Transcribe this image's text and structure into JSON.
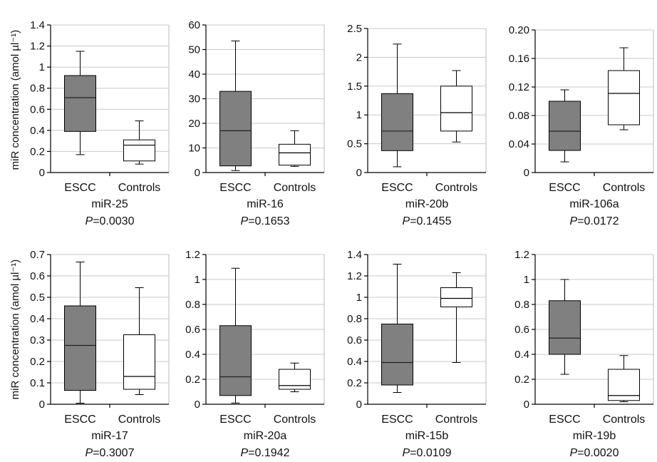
{
  "ylabel": "miR concentration (amol µl⁻¹)",
  "colors": {
    "escc_box": "#808080",
    "control_box": "#ffffff",
    "grid": "#c8c8c8"
  },
  "chart_data": [
    {
      "type": "box",
      "name": "miR-25",
      "p_prefix": "P",
      "p_value": "=0.0030",
      "ylim": [
        0,
        1.4
      ],
      "yticks": [
        0,
        0.2,
        0.4,
        0.6,
        0.8,
        1,
        1.2,
        1.4
      ],
      "ytick_labels": [
        "0",
        "0.2",
        "0.4",
        "0.6",
        "0.8",
        "1",
        "1.2",
        "1.4"
      ],
      "categories": [
        "ESCC",
        "Controls"
      ],
      "boxes": [
        {
          "min": 0.17,
          "q1": 0.39,
          "median": 0.71,
          "q3": 0.92,
          "max": 1.15
        },
        {
          "min": 0.08,
          "q1": 0.11,
          "median": 0.26,
          "q3": 0.31,
          "max": 0.49
        }
      ]
    },
    {
      "type": "box",
      "name": "miR-16",
      "p_prefix": "P",
      "p_value": "=0.1653",
      "ylim": [
        0,
        60
      ],
      "yticks": [
        0,
        10,
        20,
        30,
        40,
        50,
        60
      ],
      "ytick_labels": [
        "0",
        "10",
        "20",
        "30",
        "40",
        "50",
        "60"
      ],
      "categories": [
        "ESCC",
        "Controls"
      ],
      "boxes": [
        {
          "min": 0.8,
          "q1": 2.7,
          "median": 17,
          "q3": 33,
          "max": 53.5
        },
        {
          "min": 2.5,
          "q1": 3,
          "median": 8,
          "q3": 11.5,
          "max": 17
        }
      ]
    },
    {
      "type": "box",
      "name": "miR-20b",
      "p_prefix": "P",
      "p_value": "=0.1455",
      "ylim": [
        0,
        2.5
      ],
      "yticks": [
        0,
        0.5,
        1,
        1.5,
        2,
        2.5
      ],
      "ytick_labels": [
        "0",
        "0.5",
        "1",
        "1.5",
        "2",
        "2.5"
      ],
      "categories": [
        "ESCC",
        "Controls"
      ],
      "boxes": [
        {
          "min": 0.1,
          "q1": 0.38,
          "median": 0.72,
          "q3": 1.37,
          "max": 2.23
        },
        {
          "min": 0.53,
          "q1": 0.72,
          "median": 1.04,
          "q3": 1.5,
          "max": 1.77
        }
      ]
    },
    {
      "type": "box",
      "name": "miR-106a",
      "p_prefix": "P",
      "p_value": "=0.0172",
      "ylim": [
        0,
        0.2
      ],
      "yticks": [
        0,
        0.04,
        0.08,
        0.12,
        0.16,
        0.2
      ],
      "ytick_labels": [
        "0",
        "0.04",
        "0.08",
        "0.12",
        "0.16",
        "0.20"
      ],
      "categories": [
        "ESCC",
        "Controls"
      ],
      "boxes": [
        {
          "min": 0.015,
          "q1": 0.031,
          "median": 0.058,
          "q3": 0.1,
          "max": 0.116
        },
        {
          "min": 0.06,
          "q1": 0.067,
          "median": 0.111,
          "q3": 0.143,
          "max": 0.175
        }
      ]
    },
    {
      "type": "box",
      "name": "miR-17",
      "p_prefix": "P",
      "p_value": "=0.3007",
      "ylim": [
        0,
        0.7
      ],
      "yticks": [
        0,
        0.1,
        0.2,
        0.3,
        0.4,
        0.5,
        0.6,
        0.7
      ],
      "ytick_labels": [
        "0",
        "0.1",
        "0.2",
        "0.3",
        "0.4",
        "0.5",
        "0.6",
        "0.7"
      ],
      "categories": [
        "ESCC",
        "Controls"
      ],
      "boxes": [
        {
          "min": 0.005,
          "q1": 0.065,
          "median": 0.275,
          "q3": 0.46,
          "max": 0.665
        },
        {
          "min": 0.045,
          "q1": 0.07,
          "median": 0.13,
          "q3": 0.325,
          "max": 0.545
        }
      ]
    },
    {
      "type": "box",
      "name": "miR-20a",
      "p_prefix": "P",
      "p_value": "=0.1942",
      "ylim": [
        0,
        1.2
      ],
      "yticks": [
        0,
        0.2,
        0.4,
        0.6,
        0.8,
        1,
        1.2
      ],
      "ytick_labels": [
        "0",
        "0.2",
        "0.4",
        "0.6",
        "0.8",
        "1",
        "1.2"
      ],
      "categories": [
        "ESCC",
        "Controls"
      ],
      "boxes": [
        {
          "min": 0.01,
          "q1": 0.07,
          "median": 0.22,
          "q3": 0.63,
          "max": 1.09
        },
        {
          "min": 0.1,
          "q1": 0.12,
          "median": 0.15,
          "q3": 0.28,
          "max": 0.33
        }
      ]
    },
    {
      "type": "box",
      "name": "miR-15b",
      "p_prefix": "P",
      "p_value": "=0.0109",
      "ylim": [
        0,
        1.4
      ],
      "yticks": [
        0,
        0.2,
        0.4,
        0.6,
        0.8,
        1,
        1.2,
        1.4
      ],
      "ytick_labels": [
        "0",
        "0.2",
        "0.4",
        "0.6",
        "0.8",
        "1",
        "1.2",
        "1.4"
      ],
      "categories": [
        "ESCC",
        "Controls"
      ],
      "boxes": [
        {
          "min": 0.11,
          "q1": 0.18,
          "median": 0.39,
          "q3": 0.75,
          "max": 1.31
        },
        {
          "min": 0.39,
          "q1": 0.91,
          "median": 0.99,
          "q3": 1.09,
          "max": 1.23
        }
      ]
    },
    {
      "type": "box",
      "name": "miR-19b",
      "p_prefix": "P",
      "p_value": "=0.0020",
      "ylim": [
        0,
        1.2
      ],
      "yticks": [
        0,
        0.2,
        0.4,
        0.6,
        0.8,
        1,
        1.2
      ],
      "ytick_labels": [
        "0",
        "0.2",
        "0.4",
        "0.6",
        "0.8",
        "1",
        "1.2"
      ],
      "categories": [
        "ESCC",
        "Controls"
      ],
      "boxes": [
        {
          "min": 0.24,
          "q1": 0.4,
          "median": 0.53,
          "q3": 0.83,
          "max": 1.0
        },
        {
          "min": 0.02,
          "q1": 0.03,
          "median": 0.07,
          "q3": 0.28,
          "max": 0.39
        }
      ]
    }
  ]
}
